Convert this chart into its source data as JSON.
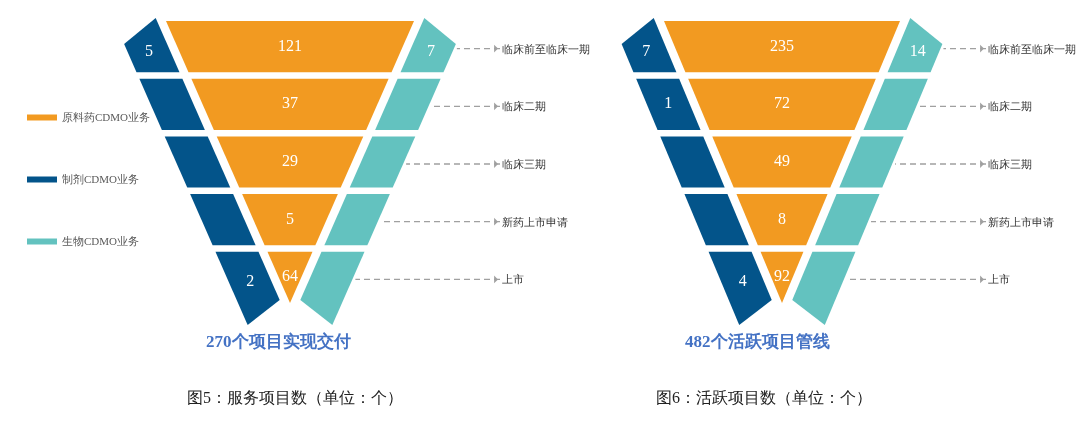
{
  "chart_data": [
    {
      "type": "other",
      "title": "270个项目实现交付",
      "categories": [
        "临床前至临床一期",
        "临床二期",
        "临床三期",
        "新药上市申请",
        "上市"
      ],
      "series": [
        {
          "name": "原料药CDMO业务",
          "color": "#f29a21",
          "values": [
            121,
            37,
            29,
            5,
            64
          ]
        },
        {
          "name": "制剂CDMO业务",
          "color": "#03548a",
          "values": [
            5,
            null,
            null,
            null,
            2
          ]
        },
        {
          "name": "生物CDMO业务",
          "color": "#63c2bf",
          "values": [
            7,
            null,
            null,
            null,
            null
          ]
        }
      ],
      "data_labels": true,
      "legend": "left",
      "annotations": [
        "图5：服务项目数（单位：个）"
      ]
    },
    {
      "type": "other",
      "title": "482个活跃项目管线",
      "categories": [
        "临床前至临床一期",
        "临床二期",
        "临床三期",
        "新药上市申请",
        "上市"
      ],
      "series": [
        {
          "color": "#f29a21",
          "values": [
            235,
            72,
            49,
            8,
            92
          ]
        },
        {
          "color": "#03548a",
          "values": [
            7,
            1,
            null,
            null,
            4
          ]
        },
        {
          "color": "#63c2bf",
          "values": [
            14,
            null,
            null,
            null,
            null
          ]
        }
      ],
      "data_labels": true,
      "annotations": [
        "图6：活跃项目数（单位：个）"
      ]
    }
  ]
}
